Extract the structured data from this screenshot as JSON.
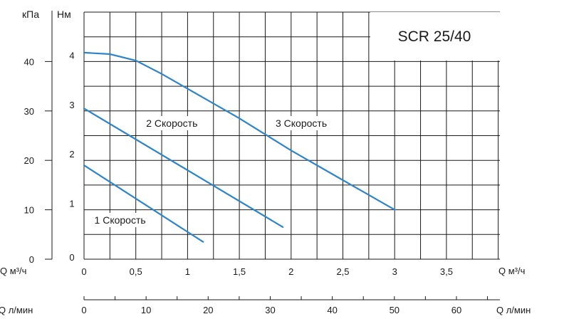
{
  "chart_data": {
    "type": "line",
    "title": "SCR 25/40",
    "y_left_label": "кПа",
    "y_right_label": "Нм",
    "y_kpa_ticks": [
      "0",
      "10",
      "20",
      "30",
      "40"
    ],
    "y_m_ticks": [
      "0",
      "1",
      "2",
      "3",
      "4"
    ],
    "x_label": "Q м³/ч",
    "x_left_label": "Q м³/ч",
    "x_ticks": [
      "0",
      "0,5",
      "1",
      "1,5",
      "2",
      "2,5",
      "3",
      "3,5"
    ],
    "x2_label": "Q л/мин",
    "x2_left_label": "Q л/мин",
    "x2_ticks": [
      "0",
      "10",
      "20",
      "30",
      "40",
      "50",
      "60"
    ],
    "xlim": [
      0,
      4
    ],
    "ylim": [
      0,
      5
    ],
    "grid": true,
    "series": [
      {
        "name": "1 Скорость",
        "x": [
          0,
          1.15
        ],
        "y": [
          1.9,
          0.35
        ]
      },
      {
        "name": "2 Скорость",
        "x": [
          0,
          1.92
        ],
        "y": [
          3.05,
          0.65
        ]
      },
      {
        "name": "3 Скорость",
        "x": [
          0,
          0.25,
          0.5,
          0.75,
          1,
          1.5,
          2,
          2.5,
          3
        ],
        "y": [
          4.18,
          4.15,
          4.02,
          3.75,
          3.45,
          2.85,
          2.2,
          1.6,
          1.0
        ]
      }
    ]
  }
}
